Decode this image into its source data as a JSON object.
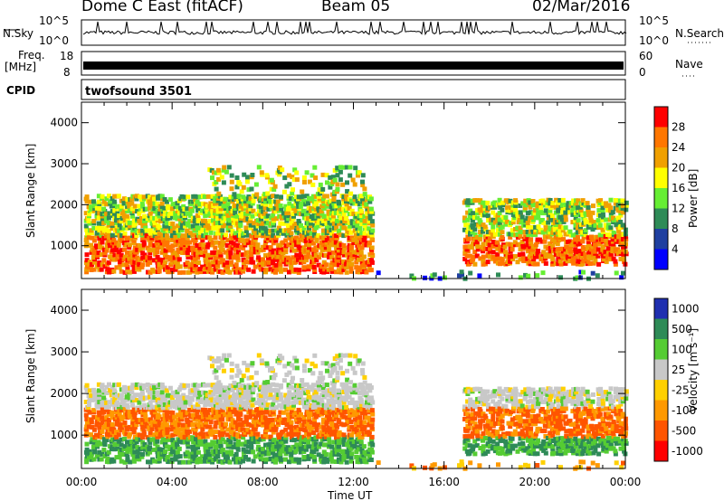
{
  "header": {
    "radar": "Dome C East (fitACF)",
    "beam": "Beam 05",
    "date": "02/Mar/2016"
  },
  "nsky_panel": {
    "left_label": "N.Sky",
    "right_label": "N.Search",
    "y_ticks": [
      "10^5",
      "10^0"
    ]
  },
  "freq_panel": {
    "left_label_line1": "Freq.",
    "left_label_line2": "[MHz]",
    "right_label": "Nave",
    "left_ticks": [
      "18",
      "8"
    ],
    "right_ticks": [
      "60",
      "0"
    ]
  },
  "cpid_panel": {
    "label": "CPID",
    "program": "twofsound 3501"
  },
  "chart_data": [
    {
      "type": "heatmap",
      "title": "",
      "ylabel": "Slant Range [km]",
      "xlabel": "",
      "ylim": [
        200,
        4500
      ],
      "y_ticks": [
        "4000",
        "3000",
        "2000",
        "1000"
      ],
      "y_tick_values": [
        4000,
        3000,
        2000,
        1000
      ],
      "colorbar": {
        "label": "Power [dB]",
        "ticks": [
          "28",
          "24",
          "20",
          "16",
          "12",
          "8",
          "4"
        ],
        "colors": [
          "#ff0000",
          "#ff7700",
          "#f0a000",
          "#ffff00",
          "#66ee33",
          "#2e8b57",
          "#1f3fa0",
          "#0000ff"
        ]
      }
    },
    {
      "type": "heatmap",
      "title": "",
      "ylabel": "Slant Range [km]",
      "xlabel": "Time UT",
      "ylim": [
        200,
        4500
      ],
      "y_ticks": [
        "4000",
        "3000",
        "2000",
        "1000"
      ],
      "y_tick_values": [
        4000,
        3000,
        2000,
        1000
      ],
      "colorbar": {
        "label": "Velocity [m s⁻¹]",
        "ticks": [
          "1000",
          "500",
          "100",
          "25",
          "-25",
          "-100",
          "-500",
          "-1000"
        ],
        "colors": [
          "#1f2fb0",
          "#2e8b57",
          "#55cc33",
          "#c8c8c8",
          "#ffd000",
          "#ff9900",
          "#ff5500",
          "#ff0000"
        ]
      }
    }
  ],
  "x_axis": {
    "label": "Time UT",
    "ticks": [
      "00:00",
      "04:00",
      "08:00",
      "12:00",
      "16:00",
      "20:00",
      "00:00"
    ],
    "range_hours": [
      0,
      24
    ]
  }
}
